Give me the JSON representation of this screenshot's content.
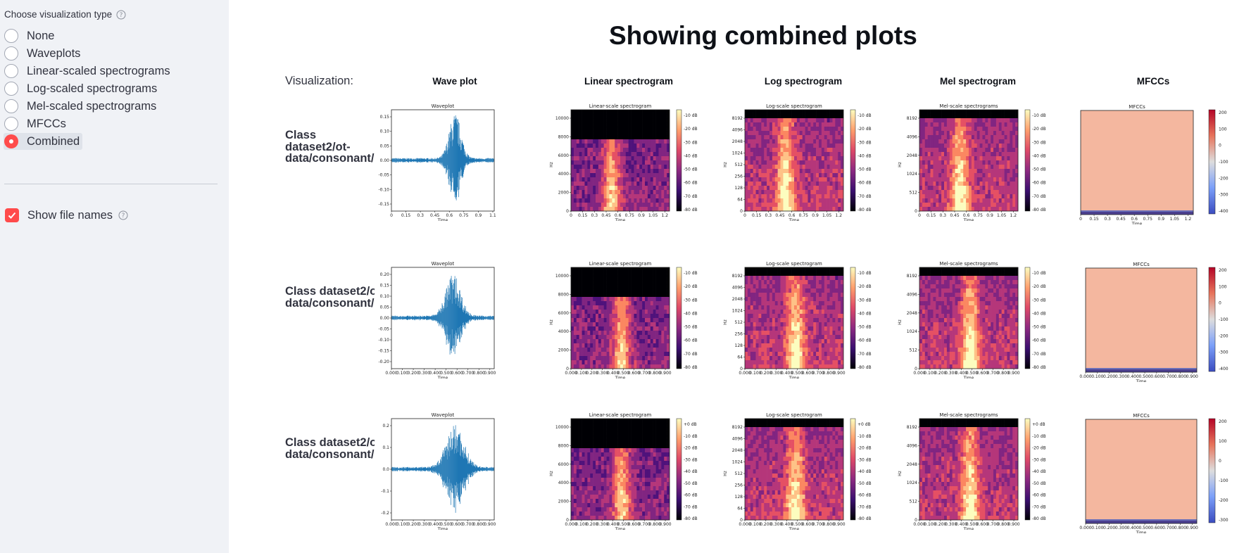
{
  "sidebar": {
    "label": "Choose visualization type",
    "options": [
      "None",
      "Waveplots",
      "Linear-scaled spectrograms",
      "Log-scaled spectrograms",
      "Mel-scaled spectrograms",
      "MFCCs",
      "Combined"
    ],
    "selected_index": 6,
    "checkbox_label": "Show file names",
    "checkbox_checked": true
  },
  "main": {
    "title": "Showing combined plots",
    "visualization_label": "Visualization:",
    "columns": [
      "Wave plot",
      "Linear spectrogram",
      "Log spectrogram",
      "Mel spectrogram",
      "MFCCs"
    ],
    "rows": [
      {
        "label_lines": [
          "Class",
          "dataset2/ot-",
          "data/consonant/"
        ]
      },
      {
        "label_lines": [
          "Class dataset2/o",
          "data/consonant/"
        ]
      },
      {
        "label_lines": [
          "Class dataset2/o",
          "data/consonant/"
        ]
      }
    ]
  },
  "plots": {
    "waveplot_title": "Waveplot",
    "linear_title": "Linear-scale spectrogram",
    "log_title": "Log-scale spectrogram",
    "mel_title": "Mel-scale spectrograms",
    "mfcc_title": "MFCCs",
    "time_label": "Time",
    "hz_label": "Hz",
    "wave_y_ticks": [
      [
        "0.15",
        "0.10",
        "0.05",
        "0.00",
        "-0.05",
        "-0.10",
        "-0.15"
      ],
      [
        "0.20",
        "0.15",
        "0.10",
        "0.05",
        "0.00",
        "-0.05",
        "-0.10",
        "-0.15",
        "-0.20"
      ],
      [
        "0.2",
        "0.1",
        "0.0",
        "-0.1",
        "-0.2"
      ]
    ],
    "x_ticks": [
      [
        "0",
        "0.15",
        "0.3",
        "0.45",
        "0.6",
        "0.75",
        "0.9",
        "1.05",
        "1.2"
      ],
      [
        "0.000",
        "0.100",
        "0.200",
        "0.300",
        "0.400",
        "0.500",
        "0.600",
        "0.700",
        "0.800",
        "0.900"
      ],
      [
        "0.000",
        "0.100",
        "0.200",
        "0.300",
        "0.400",
        "0.500",
        "0.600",
        "0.700",
        "0.800",
        "0.900"
      ]
    ],
    "wave_x_ticks_row1": [
      "0",
      "0.15",
      "0.3",
      "0.45",
      "0.6",
      "0.75",
      "0.9",
      "1.1"
    ],
    "linear_y_ticks": [
      "10000",
      "8000",
      "6000",
      "4000",
      "2000",
      "0"
    ],
    "log_y_ticks": [
      "8192",
      "4096",
      "2048",
      "1024",
      "512",
      "256",
      "128",
      "64",
      "0"
    ],
    "mel_y_ticks": [
      "8192",
      "4096",
      "2048",
      "1024",
      "512",
      "0"
    ],
    "db_ticks": [
      "-10 dB",
      "-20 dB",
      "-30 dB",
      "-40 dB",
      "-50 dB",
      "-60 dB",
      "-70 dB",
      "-80 dB"
    ],
    "db_ticks_row3": [
      "+0 dB",
      "-10 dB",
      "-20 dB",
      "-30 dB",
      "-40 dB",
      "-50 dB",
      "-60 dB",
      "-70 dB",
      "-80 dB"
    ],
    "mfcc_ticks": [
      [
        "200",
        "100",
        "0",
        "-100",
        "-200",
        "-300",
        "-400"
      ],
      [
        "200",
        "100",
        "0",
        "-100",
        "-200",
        "-300",
        "-400"
      ],
      [
        "200",
        "100",
        "0",
        "-100",
        "-200",
        "-300"
      ]
    ]
  },
  "colors": {
    "accent": "#ff4b4b",
    "wave": "#1f77b4",
    "sidebar_bg": "#f0f2f6"
  }
}
